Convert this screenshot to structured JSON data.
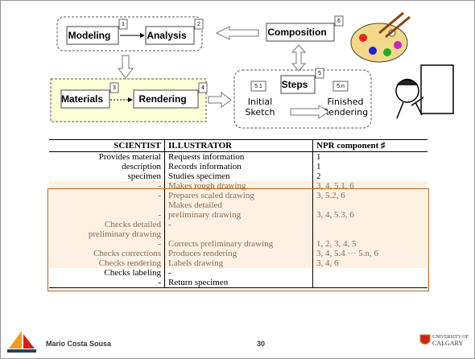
{
  "diagram": {
    "boxes": [
      {
        "label": "Modeling",
        "number": "1"
      },
      {
        "label": "Analysis",
        "number": "2"
      },
      {
        "label": "Materials",
        "number": "3"
      },
      {
        "label": "Rendering",
        "number": "4"
      },
      {
        "label": "Steps",
        "number": "5"
      },
      {
        "label": "Composition",
        "number": "6"
      }
    ],
    "steps": [
      {
        "number": "5.1",
        "label": [
          "Initial",
          "Sketch"
        ]
      },
      {
        "number": "5.n",
        "label": [
          "Finished",
          "Rendering"
        ]
      }
    ]
  },
  "table": {
    "header": [
      "SCIENTIST",
      "ILLUSTRATOR",
      "NPR component ♯"
    ],
    "rows": [
      [
        "Provides material",
        "Requests information",
        "1"
      ],
      [
        "description",
        "Records information",
        "1"
      ],
      [
        "specimen",
        "Studies specimen",
        "2"
      ],
      [
        "-",
        "Makes rough drawing",
        "3, 4, 5.1, 6"
      ],
      [
        "-",
        "Prepares scaled drawing",
        "3, 5.2, 6"
      ],
      [
        "-",
        [
          "Makes detailed",
          "preliminary drawing"
        ],
        "3, 4, 5.3, 6"
      ],
      [
        [
          "Checks detailed",
          "preliminary drawing"
        ],
        "-"
      ],
      [
        "-",
        "Corrects preliminary drawing",
        "1, 2, 3, 4, 5"
      ],
      [
        "Checks corrections",
        "Produces rendering",
        "3, 4, 5.4 ··· 5.n, 6"
      ],
      [
        "Checks rendering",
        "Labels drawing",
        "3, 4, 6"
      ],
      [
        "Checks labeling",
        "-"
      ],
      [
        "-",
        "Return specimen"
      ]
    ]
  },
  "footer": {
    "author": "Mario Costa Sousa",
    "page": "30",
    "logo": [
      "UNIVERSITY OF",
      "CALGARY"
    ]
  }
}
